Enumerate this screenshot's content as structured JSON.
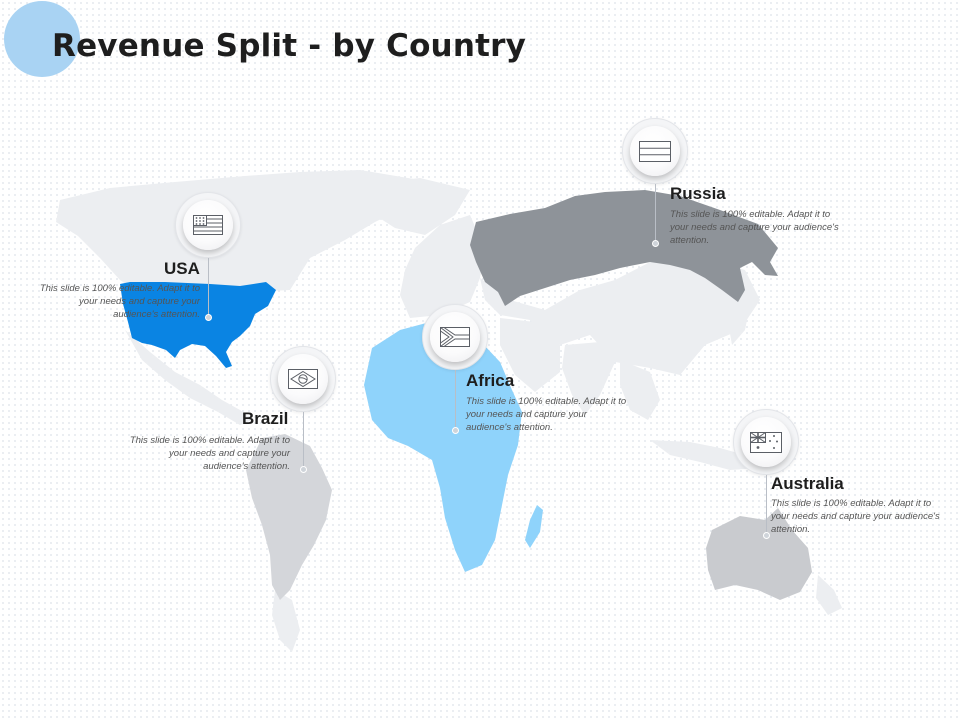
{
  "title": "Revenue Split - by Country",
  "colors": {
    "usa": "#0a84e3",
    "africa": "#8fd3fb",
    "russia": "#8e9399",
    "brazil": "#d4d6da",
    "australia": "#c9cbcf",
    "world": "#eceef1",
    "corner_circle": "#a9d3f3"
  },
  "countries": [
    {
      "key": "usa",
      "name": "USA",
      "flag_icon": "usa-flag-icon",
      "description": "This slide is 100% editable. Adapt it to your needs and capture your audience's attention."
    },
    {
      "key": "brazil",
      "name": "Brazil",
      "flag_icon": "brazil-flag-icon",
      "description": "This slide is 100% editable. Adapt it to your needs and capture your audience's attention."
    },
    {
      "key": "africa",
      "name": "Africa",
      "flag_icon": "south-africa-flag-icon",
      "description": "This slide is 100% editable. Adapt it to your needs and capture your audience's attention."
    },
    {
      "key": "russia",
      "name": "Russia",
      "flag_icon": "russia-flag-icon",
      "description": "This slide is 100% editable. Adapt it to your needs and capture your audience's attention."
    },
    {
      "key": "australia",
      "name": "Australia",
      "flag_icon": "australia-flag-icon",
      "description": "This slide is 100% editable. Adapt it to your needs and capture your audience's attention."
    }
  ]
}
